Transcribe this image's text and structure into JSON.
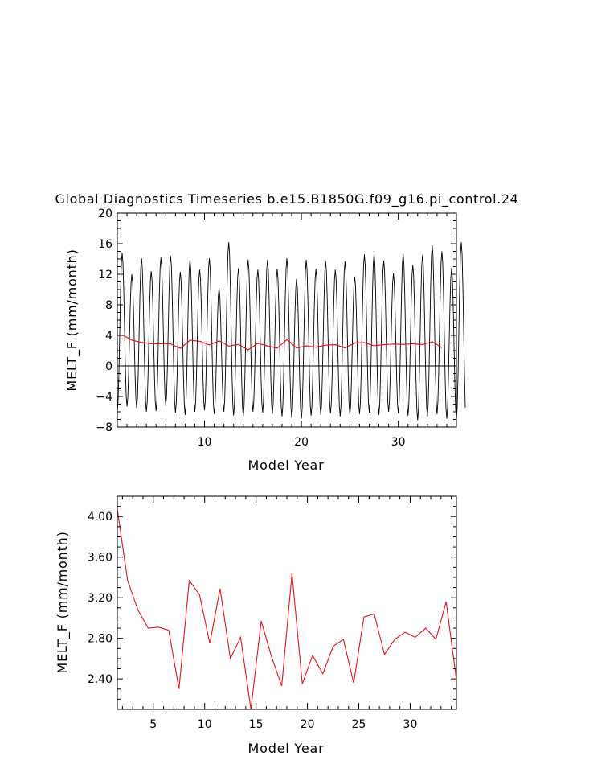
{
  "title": "Global Diagnostics Timeseries b.e15.B1850G.f09_g16.pi_control.24",
  "colors": {
    "monthly": "#000000",
    "annual": "#e8121a",
    "zero_line": "#000000"
  },
  "chart_data": [
    {
      "type": "line",
      "title": "Global Diagnostics Timeseries b.e15.B1850G.f09_g16.pi_control.24",
      "xlabel": "Model Year",
      "ylabel": "MELT_F (mm/month)",
      "xlim": [
        1,
        36
      ],
      "ylim": [
        -8,
        20
      ],
      "x_ticks": [
        10,
        20,
        30
      ],
      "y_ticks": [
        -8,
        -4,
        0,
        4,
        8,
        12,
        16,
        20
      ],
      "zero_line": true,
      "series": [
        {
          "style": "monthly",
          "x_start": 1,
          "step": 0.0833,
          "peaks": [
            14.8,
            12.0,
            14.1,
            12.4,
            14.2,
            14.4,
            12.3,
            13.9,
            12.6,
            14.1,
            10.2,
            16.2,
            12.8,
            13.9,
            12.6,
            13.9,
            12.7,
            14.1,
            11.4,
            13.9,
            12.7,
            13.7,
            12.6,
            13.7,
            11.7,
            14.6,
            14.7,
            13.8,
            12.1,
            14.7,
            13.2,
            14.5,
            15.8,
            15.0,
            12.8,
            16.2
          ],
          "troughs": [
            -6.0,
            -5.3,
            -5.5,
            -6.0,
            -5.9,
            -5.2,
            -6.1,
            -6.4,
            -6.0,
            -5.8,
            -6.3,
            -6.0,
            -6.5,
            -6.6,
            -6.0,
            -6.1,
            -6.3,
            -6.6,
            -6.8,
            -6.9,
            -6.5,
            -6.4,
            -6.2,
            -6.6,
            -6.4,
            -6.3,
            -6.1,
            -6.4,
            -6.0,
            -6.2,
            -6.5,
            -7.1,
            -6.6,
            -6.3,
            -6.9,
            -7.0
          ]
        },
        {
          "style": "annual",
          "x": [
            1.5,
            2.5,
            3.5,
            4.5,
            5.5,
            6.5,
            7.5,
            8.5,
            9.5,
            10.5,
            11.5,
            12.5,
            13.5,
            14.5,
            15.5,
            16.5,
            17.5,
            18.5,
            19.5,
            20.5,
            21.5,
            22.5,
            23.5,
            24.5,
            25.5,
            26.5,
            27.5,
            28.5,
            29.5,
            30.5,
            31.5,
            32.5,
            33.5,
            34.5
          ],
          "values": [
            4.07,
            3.37,
            3.08,
            2.9,
            2.91,
            2.88,
            2.3,
            3.37,
            3.23,
            2.75,
            3.29,
            2.6,
            2.81,
            2.1,
            2.97,
            2.62,
            2.33,
            3.44,
            2.35,
            2.63,
            2.45,
            2.72,
            2.79,
            2.36,
            3.01,
            3.04,
            2.64,
            2.79,
            2.86,
            2.81,
            2.9,
            2.79,
            3.16,
            2.39
          ]
        }
      ]
    },
    {
      "type": "line",
      "title": "",
      "xlabel": "Model Year",
      "ylabel": "MELT_F (mm/month)",
      "xlim": [
        1.5,
        34.5
      ],
      "ylim": [
        2.1,
        4.2
      ],
      "x_ticks": [
        5,
        10,
        15,
        20,
        25,
        30
      ],
      "y_ticks": [
        2.4,
        2.8,
        3.2,
        3.6,
        4.0
      ],
      "y_tick_labels": [
        "2.40",
        "2.80",
        "3.20",
        "3.60",
        "4.00"
      ],
      "series": [
        {
          "style": "annual",
          "x": [
            1.5,
            2.5,
            3.5,
            4.5,
            5.5,
            6.5,
            7.5,
            8.5,
            9.5,
            10.5,
            11.5,
            12.5,
            13.5,
            14.5,
            15.5,
            16.5,
            17.5,
            18.5,
            19.5,
            20.5,
            21.5,
            22.5,
            23.5,
            24.5,
            25.5,
            26.5,
            27.5,
            28.5,
            29.5,
            30.5,
            31.5,
            32.5,
            33.5,
            34.5
          ],
          "values": [
            4.07,
            3.37,
            3.08,
            2.9,
            2.91,
            2.88,
            2.3,
            3.37,
            3.23,
            2.75,
            3.29,
            2.6,
            2.81,
            2.1,
            2.97,
            2.62,
            2.33,
            3.44,
            2.35,
            2.63,
            2.45,
            2.72,
            2.79,
            2.36,
            3.01,
            3.04,
            2.64,
            2.79,
            2.86,
            2.81,
            2.9,
            2.79,
            3.16,
            2.39
          ]
        }
      ]
    }
  ]
}
